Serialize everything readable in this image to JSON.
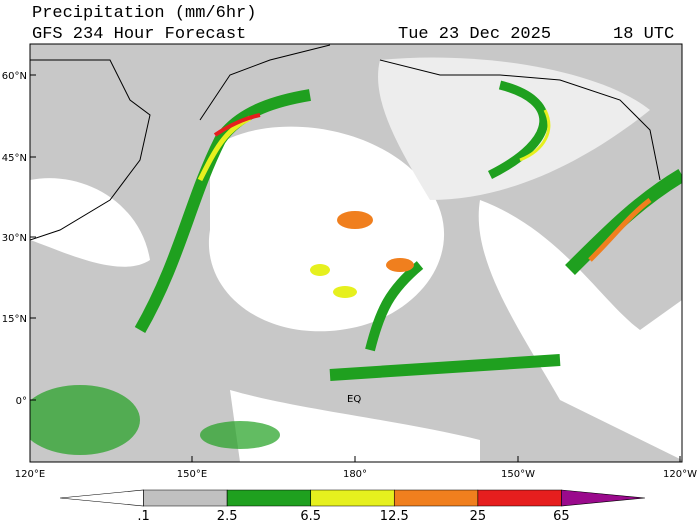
{
  "header": {
    "title": "Precipitation (mm/6hr)",
    "subtitle": "GFS 234 Hour Forecast",
    "date": "Tue 23 Dec 2025",
    "time": "18 UTC"
  },
  "map": {
    "lat_labels": [
      "60°N",
      "45°N",
      "30°N",
      "15°N",
      "0°"
    ],
    "lon_labels": [
      "120°E",
      "150°E",
      "180°",
      "150°W",
      "120°W"
    ],
    "equator_label": "EQ"
  },
  "colorbar": {
    "labels": [
      ".1",
      "2.5",
      "6.5",
      "12.5",
      "25",
      "65"
    ],
    "colors": [
      "#ffffff",
      "#c0c0c0",
      "#1fa01f",
      "#e6f01e",
      "#f07f1e",
      "#e61e1e",
      "#9a0a8c"
    ]
  }
}
